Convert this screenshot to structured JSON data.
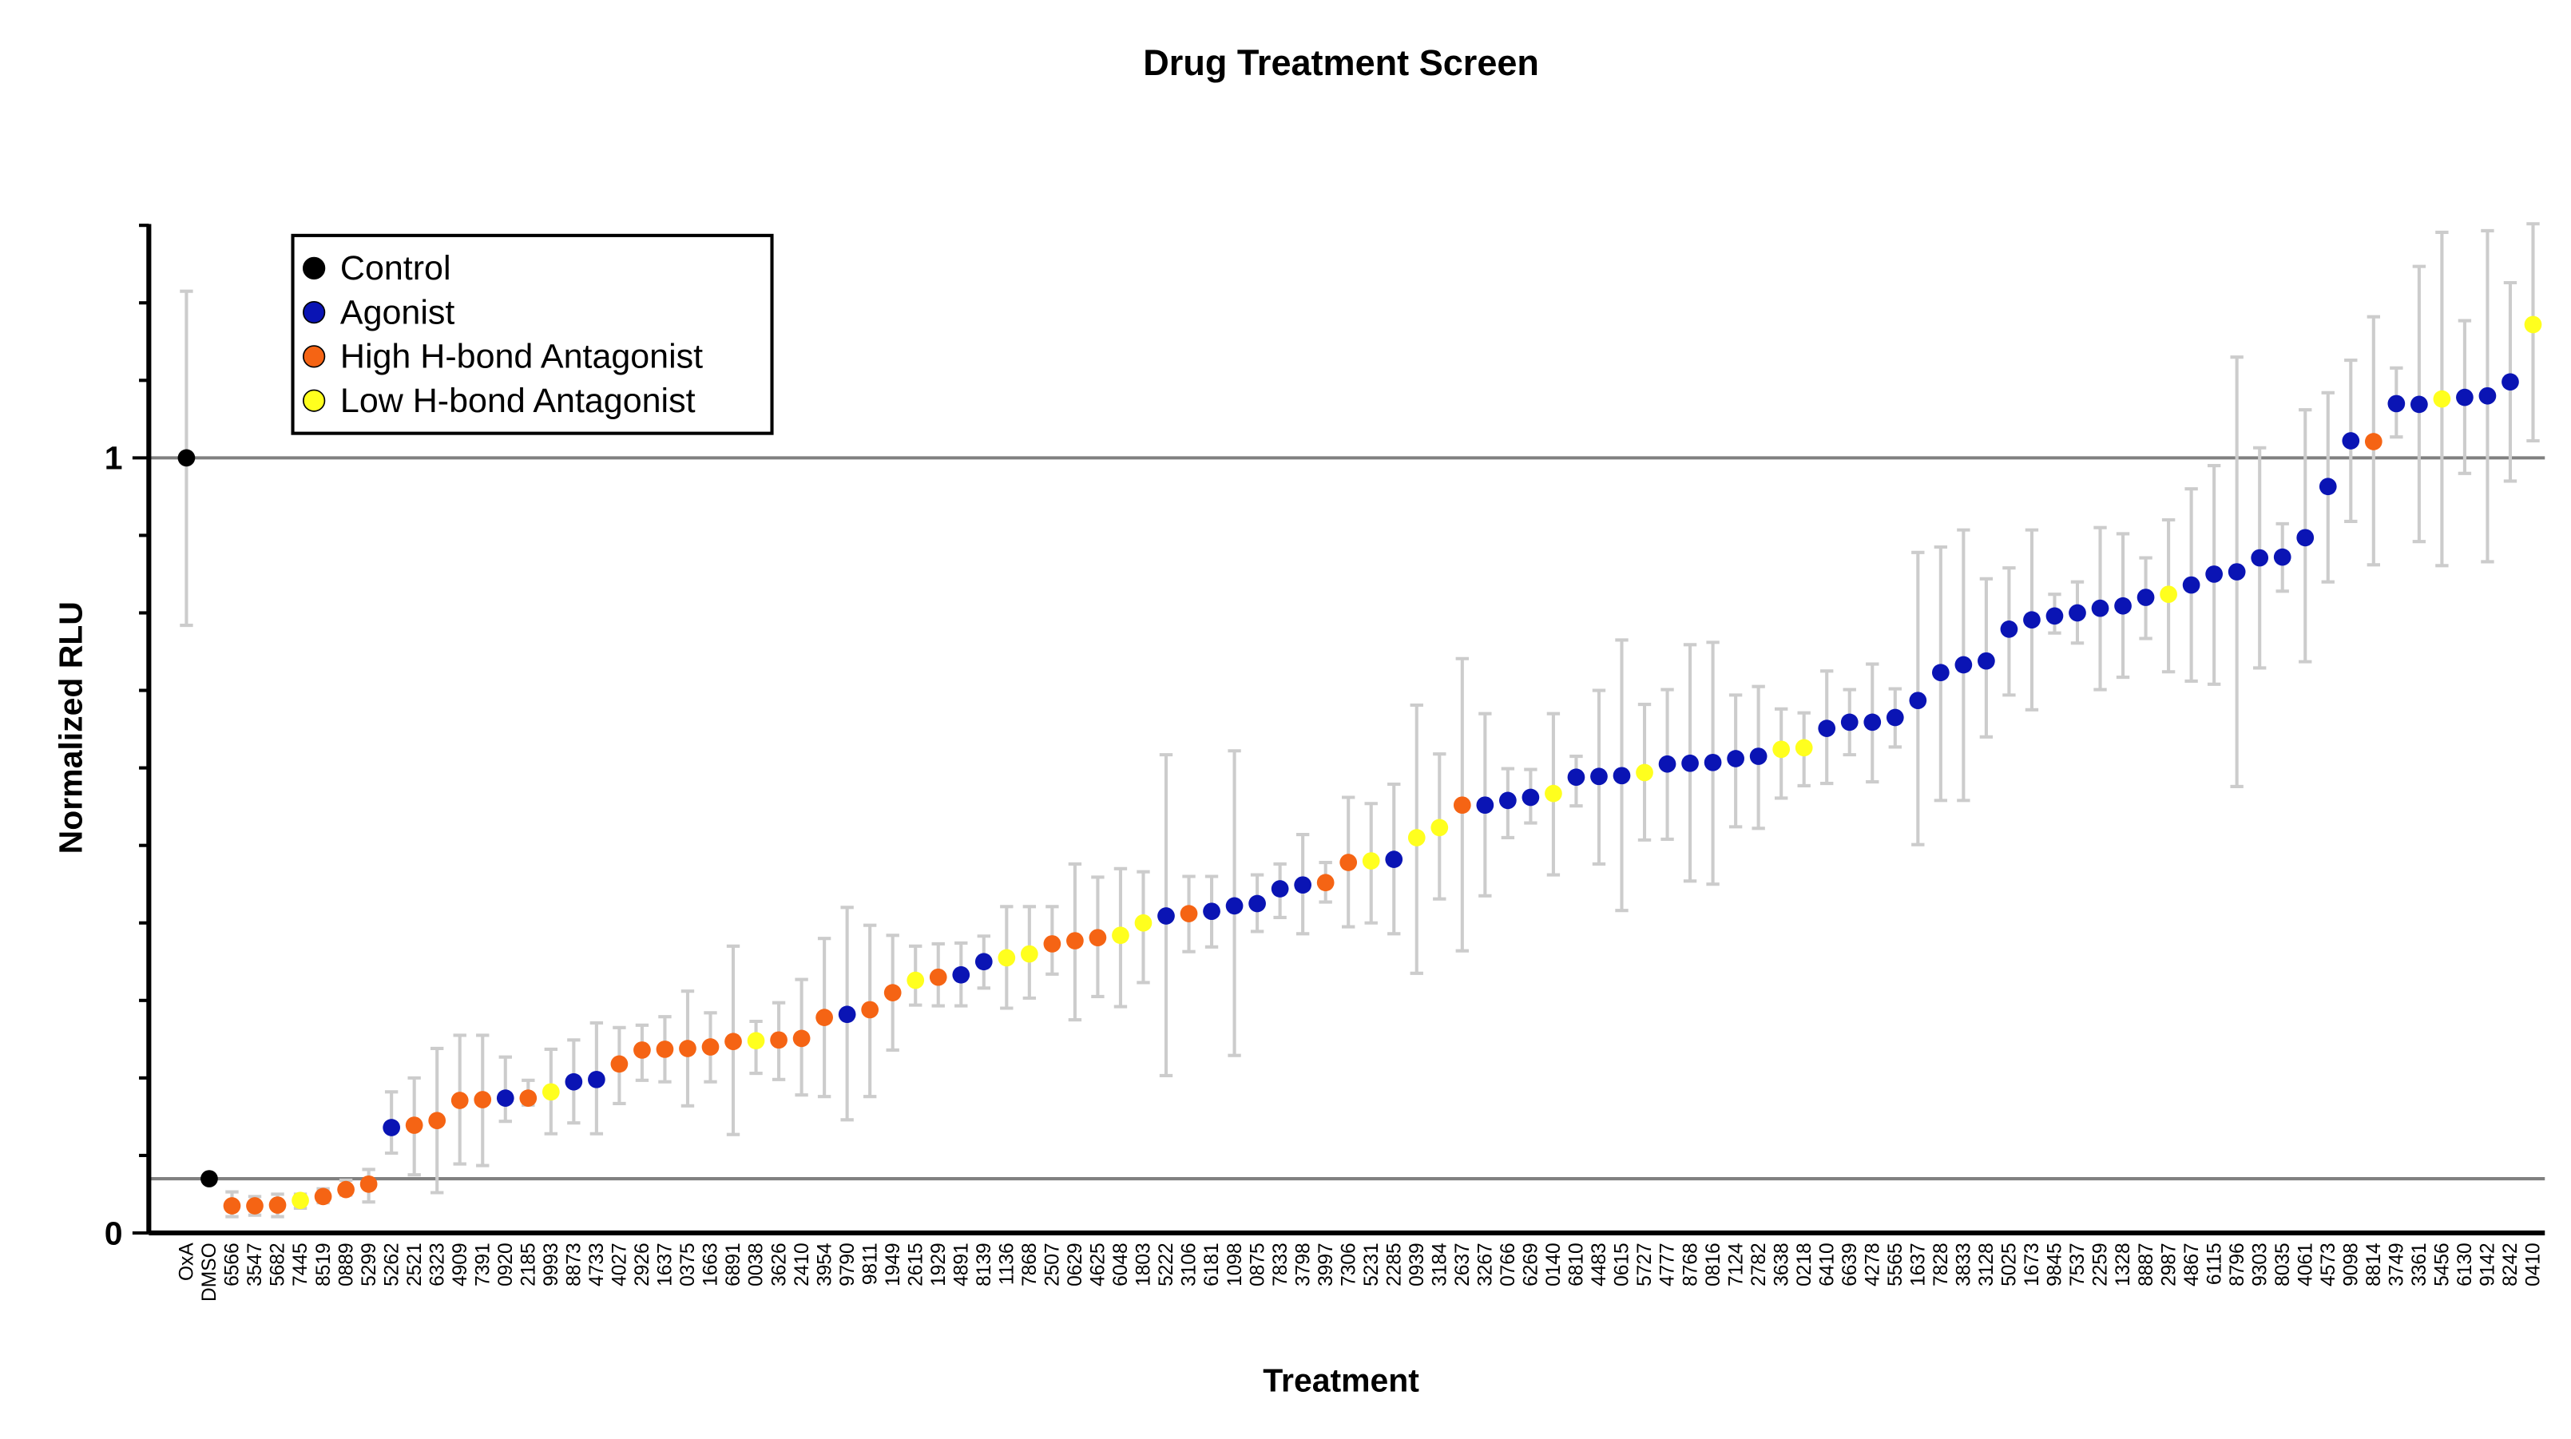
{
  "chart_data": {
    "type": "scatter",
    "title": "Drug Treatment Screen",
    "xlabel": "Treatment",
    "ylabel": "Normalized RLU",
    "y_ticks": [
      {
        "value": 0,
        "label": "0"
      },
      {
        "value": 1,
        "label": "1"
      }
    ],
    "ylim": [
      0,
      1.3
    ],
    "reference_lines": [
      1.0,
      0.07
    ],
    "legend_position": "top-left",
    "categories": [
      {
        "key": "control",
        "label": "Control",
        "color": "#000000"
      },
      {
        "key": "agonist",
        "label": "Agonist",
        "color": "#0a14b4"
      },
      {
        "key": "high",
        "label": "High H-bond Antagonist",
        "color": "#f56414"
      },
      {
        "key": "low",
        "label": "Low H-bond Antagonist",
        "color": "#ffff1e"
      }
    ],
    "points": [
      {
        "label": "OxA",
        "value": 1.0,
        "err": [
          0.784,
          1.215
        ],
        "group": "control"
      },
      {
        "label": "DMSO",
        "value": 0.07,
        "err": null,
        "group": "control"
      },
      {
        "label": "6566",
        "value": 0.035,
        "err": [
          0.021,
          0.053
        ],
        "group": "high"
      },
      {
        "label": "3547",
        "value": 0.035,
        "err": [
          0.023,
          0.047
        ],
        "group": "high"
      },
      {
        "label": "5682",
        "value": 0.036,
        "err": [
          0.021,
          0.05
        ],
        "group": "high"
      },
      {
        "label": "7445",
        "value": 0.042,
        "err": [
          0.032,
          0.05
        ],
        "group": "low"
      },
      {
        "label": "8519",
        "value": 0.047,
        "err": [
          0.039,
          0.057
        ],
        "group": "high"
      },
      {
        "label": "0889",
        "value": 0.056,
        "err": [
          0.049,
          0.068
        ],
        "group": "high"
      },
      {
        "label": "5299",
        "value": 0.063,
        "err": [
          0.04,
          0.082
        ],
        "group": "high"
      },
      {
        "label": "5262",
        "value": 0.136,
        "err": [
          0.103,
          0.182
        ],
        "group": "agonist"
      },
      {
        "label": "2521",
        "value": 0.139,
        "err": [
          0.075,
          0.2
        ],
        "group": "high"
      },
      {
        "label": "6323",
        "value": 0.145,
        "err": [
          0.052,
          0.238
        ],
        "group": "high"
      },
      {
        "label": "4909",
        "value": 0.171,
        "err": [
          0.089,
          0.255
        ],
        "group": "high"
      },
      {
        "label": "7391",
        "value": 0.172,
        "err": [
          0.087,
          0.255
        ],
        "group": "high"
      },
      {
        "label": "0920",
        "value": 0.174,
        "err": [
          0.144,
          0.227
        ],
        "group": "agonist"
      },
      {
        "label": "2185",
        "value": 0.174,
        "err": [
          0.165,
          0.197
        ],
        "group": "high"
      },
      {
        "label": "9993",
        "value": 0.182,
        "err": [
          0.128,
          0.237
        ],
        "group": "low"
      },
      {
        "label": "8873",
        "value": 0.195,
        "err": [
          0.142,
          0.249
        ],
        "group": "agonist"
      },
      {
        "label": "4733",
        "value": 0.198,
        "err": [
          0.128,
          0.271
        ],
        "group": "agonist"
      },
      {
        "label": "4027",
        "value": 0.218,
        "err": [
          0.167,
          0.265
        ],
        "group": "high"
      },
      {
        "label": "2926",
        "value": 0.236,
        "err": [
          0.197,
          0.268
        ],
        "group": "high"
      },
      {
        "label": "1637",
        "value": 0.237,
        "err": [
          0.195,
          0.279
        ],
        "group": "high"
      },
      {
        "label": "0375",
        "value": 0.238,
        "err": [
          0.164,
          0.312
        ],
        "group": "high"
      },
      {
        "label": "1663",
        "value": 0.24,
        "err": [
          0.195,
          0.284
        ],
        "group": "high"
      },
      {
        "label": "6891",
        "value": 0.247,
        "err": [
          0.127,
          0.37
        ],
        "group": "high"
      },
      {
        "label": "0038",
        "value": 0.248,
        "err": [
          0.206,
          0.273
        ],
        "group": "low"
      },
      {
        "label": "3626",
        "value": 0.249,
        "err": [
          0.198,
          0.297
        ],
        "group": "high"
      },
      {
        "label": "2410",
        "value": 0.251,
        "err": [
          0.178,
          0.327
        ],
        "group": "high"
      },
      {
        "label": "3954",
        "value": 0.278,
        "err": [
          0.176,
          0.38
        ],
        "group": "high"
      },
      {
        "label": "9790",
        "value": 0.282,
        "err": [
          0.146,
          0.42
        ],
        "group": "agonist"
      },
      {
        "label": "9811",
        "value": 0.288,
        "err": [
          0.176,
          0.397
        ],
        "group": "high"
      },
      {
        "label": "1949",
        "value": 0.31,
        "err": [
          0.236,
          0.384
        ],
        "group": "high"
      },
      {
        "label": "2615",
        "value": 0.326,
        "err": [
          0.294,
          0.37
        ],
        "group": "low"
      },
      {
        "label": "1929",
        "value": 0.33,
        "err": [
          0.293,
          0.373
        ],
        "group": "high"
      },
      {
        "label": "4891",
        "value": 0.333,
        "err": [
          0.293,
          0.374
        ],
        "group": "agonist"
      },
      {
        "label": "8139",
        "value": 0.35,
        "err": [
          0.316,
          0.383
        ],
        "group": "agonist"
      },
      {
        "label": "1136",
        "value": 0.355,
        "err": [
          0.29,
          0.421
        ],
        "group": "low"
      },
      {
        "label": "7868",
        "value": 0.36,
        "err": [
          0.303,
          0.421
        ],
        "group": "low"
      },
      {
        "label": "2507",
        "value": 0.373,
        "err": [
          0.334,
          0.421
        ],
        "group": "high"
      },
      {
        "label": "0629",
        "value": 0.377,
        "err": [
          0.275,
          0.476
        ],
        "group": "high"
      },
      {
        "label": "4625",
        "value": 0.381,
        "err": [
          0.305,
          0.459
        ],
        "group": "high"
      },
      {
        "label": "6048",
        "value": 0.384,
        "err": [
          0.292,
          0.47
        ],
        "group": "low"
      },
      {
        "label": "1803",
        "value": 0.4,
        "err": [
          0.323,
          0.466
        ],
        "group": "low"
      },
      {
        "label": "5222",
        "value": 0.409,
        "err": [
          0.203,
          0.617
        ],
        "group": "agonist"
      },
      {
        "label": "3106",
        "value": 0.412,
        "err": [
          0.363,
          0.46
        ],
        "group": "high"
      },
      {
        "label": "6181",
        "value": 0.415,
        "err": [
          0.369,
          0.46
        ],
        "group": "agonist"
      },
      {
        "label": "1098",
        "value": 0.422,
        "err": [
          0.229,
          0.622
        ],
        "group": "agonist"
      },
      {
        "label": "0875",
        "value": 0.425,
        "err": [
          0.389,
          0.462
        ],
        "group": "agonist"
      },
      {
        "label": "7833",
        "value": 0.444,
        "err": [
          0.407,
          0.476
        ],
        "group": "agonist"
      },
      {
        "label": "3798",
        "value": 0.449,
        "err": [
          0.386,
          0.514
        ],
        "group": "agonist"
      },
      {
        "label": "3997",
        "value": 0.452,
        "err": [
          0.427,
          0.478
        ],
        "group": "high"
      },
      {
        "label": "7306",
        "value": 0.478,
        "err": [
          0.395,
          0.562
        ],
        "group": "high"
      },
      {
        "label": "5231",
        "value": 0.48,
        "err": [
          0.4,
          0.554
        ],
        "group": "low"
      },
      {
        "label": "2285",
        "value": 0.482,
        "err": [
          0.386,
          0.579
        ],
        "group": "agonist"
      },
      {
        "label": "0939",
        "value": 0.51,
        "err": [
          0.335,
          0.681
        ],
        "group": "low"
      },
      {
        "label": "3184",
        "value": 0.523,
        "err": [
          0.431,
          0.618
        ],
        "group": "low"
      },
      {
        "label": "2637",
        "value": 0.552,
        "err": [
          0.364,
          0.741
        ],
        "group": "high"
      },
      {
        "label": "3267",
        "value": 0.552,
        "err": [
          0.435,
          0.67
        ],
        "group": "agonist"
      },
      {
        "label": "0766",
        "value": 0.558,
        "err": [
          0.51,
          0.599
        ],
        "group": "agonist"
      },
      {
        "label": "6269",
        "value": 0.562,
        "err": [
          0.529,
          0.598
        ],
        "group": "agonist"
      },
      {
        "label": "0140",
        "value": 0.567,
        "err": [
          0.462,
          0.67
        ],
        "group": "low"
      },
      {
        "label": "6810",
        "value": 0.588,
        "err": [
          0.551,
          0.615
        ],
        "group": "agonist"
      },
      {
        "label": "4483",
        "value": 0.589,
        "err": [
          0.476,
          0.7
        ],
        "group": "agonist"
      },
      {
        "label": "0615",
        "value": 0.59,
        "err": [
          0.416,
          0.765
        ],
        "group": "agonist"
      },
      {
        "label": "5727",
        "value": 0.594,
        "err": [
          0.507,
          0.682
        ],
        "group": "low"
      },
      {
        "label": "4777",
        "value": 0.605,
        "err": [
          0.508,
          0.701
        ],
        "group": "agonist"
      },
      {
        "label": "8768",
        "value": 0.606,
        "err": [
          0.454,
          0.759
        ],
        "group": "agonist"
      },
      {
        "label": "0816",
        "value": 0.607,
        "err": [
          0.45,
          0.762
        ],
        "group": "agonist"
      },
      {
        "label": "7124",
        "value": 0.612,
        "err": [
          0.524,
          0.694
        ],
        "group": "agonist"
      },
      {
        "label": "2782",
        "value": 0.615,
        "err": [
          0.522,
          0.705
        ],
        "group": "agonist"
      },
      {
        "label": "3638",
        "value": 0.624,
        "err": [
          0.561,
          0.676
        ],
        "group": "low"
      },
      {
        "label": "0218",
        "value": 0.626,
        "err": [
          0.577,
          0.671
        ],
        "group": "low"
      },
      {
        "label": "6410",
        "value": 0.651,
        "err": [
          0.58,
          0.725
        ],
        "group": "agonist"
      },
      {
        "label": "6639",
        "value": 0.659,
        "err": [
          0.617,
          0.701
        ],
        "group": "agonist"
      },
      {
        "label": "4278",
        "value": 0.659,
        "err": [
          0.582,
          0.734
        ],
        "group": "agonist"
      },
      {
        "label": "5565",
        "value": 0.665,
        "err": [
          0.627,
          0.702
        ],
        "group": "agonist"
      },
      {
        "label": "1637",
        "value": 0.687,
        "err": [
          0.501,
          0.878
        ],
        "group": "agonist"
      },
      {
        "label": "7828",
        "value": 0.723,
        "err": [
          0.558,
          0.885
        ],
        "group": "agonist"
      },
      {
        "label": "3833",
        "value": 0.733,
        "err": [
          0.558,
          0.907
        ],
        "group": "agonist"
      },
      {
        "label": "3128",
        "value": 0.738,
        "err": [
          0.64,
          0.844
        ],
        "group": "agonist"
      },
      {
        "label": "5025",
        "value": 0.779,
        "err": [
          0.694,
          0.858
        ],
        "group": "agonist"
      },
      {
        "label": "1673",
        "value": 0.791,
        "err": [
          0.675,
          0.907
        ],
        "group": "agonist"
      },
      {
        "label": "9845",
        "value": 0.796,
        "err": [
          0.774,
          0.824
        ],
        "group": "agonist"
      },
      {
        "label": "7537",
        "value": 0.8,
        "err": [
          0.761,
          0.84
        ],
        "group": "agonist"
      },
      {
        "label": "2259",
        "value": 0.806,
        "err": [
          0.701,
          0.91
        ],
        "group": "agonist"
      },
      {
        "label": "1328",
        "value": 0.809,
        "err": [
          0.717,
          0.902
        ],
        "group": "agonist"
      },
      {
        "label": "8887",
        "value": 0.82,
        "err": [
          0.767,
          0.871
        ],
        "group": "agonist"
      },
      {
        "label": "2987",
        "value": 0.824,
        "err": [
          0.724,
          0.92
        ],
        "group": "low"
      },
      {
        "label": "4867",
        "value": 0.836,
        "err": [
          0.712,
          0.96
        ],
        "group": "agonist"
      },
      {
        "label": "6115",
        "value": 0.85,
        "err": [
          0.708,
          0.99
        ],
        "group": "agonist"
      },
      {
        "label": "8796",
        "value": 0.853,
        "err": [
          0.576,
          1.13
        ],
        "group": "agonist"
      },
      {
        "label": "9303",
        "value": 0.871,
        "err": [
          0.729,
          1.013
        ],
        "group": "agonist"
      },
      {
        "label": "8035",
        "value": 0.872,
        "err": [
          0.828,
          0.915
        ],
        "group": "agonist"
      },
      {
        "label": "4061",
        "value": 0.897,
        "err": [
          0.737,
          1.062
        ],
        "group": "agonist"
      },
      {
        "label": "4573",
        "value": 0.963,
        "err": [
          0.84,
          1.084
        ],
        "group": "agonist"
      },
      {
        "label": "9098",
        "value": 1.022,
        "err": [
          0.918,
          1.126
        ],
        "group": "agonist"
      },
      {
        "label": "8814",
        "value": 1.021,
        "err": [
          0.862,
          1.182
        ],
        "group": "high"
      },
      {
        "label": "3749",
        "value": 1.07,
        "err": [
          1.027,
          1.116
        ],
        "group": "agonist"
      },
      {
        "label": "3361",
        "value": 1.069,
        "err": [
          0.892,
          1.247
        ],
        "group": "agonist"
      },
      {
        "label": "5456",
        "value": 1.076,
        "err": [
          0.861,
          1.291
        ],
        "group": "low"
      },
      {
        "label": "6130",
        "value": 1.078,
        "err": [
          0.98,
          1.177
        ],
        "group": "agonist"
      },
      {
        "label": "9142",
        "value": 1.08,
        "err": [
          0.866,
          1.293
        ],
        "group": "agonist"
      },
      {
        "label": "8242",
        "value": 1.098,
        "err": [
          0.97,
          1.226
        ],
        "group": "agonist"
      },
      {
        "label": "0410",
        "value": 1.172,
        "err": [
          1.022,
          1.302
        ],
        "group": "low"
      }
    ]
  }
}
